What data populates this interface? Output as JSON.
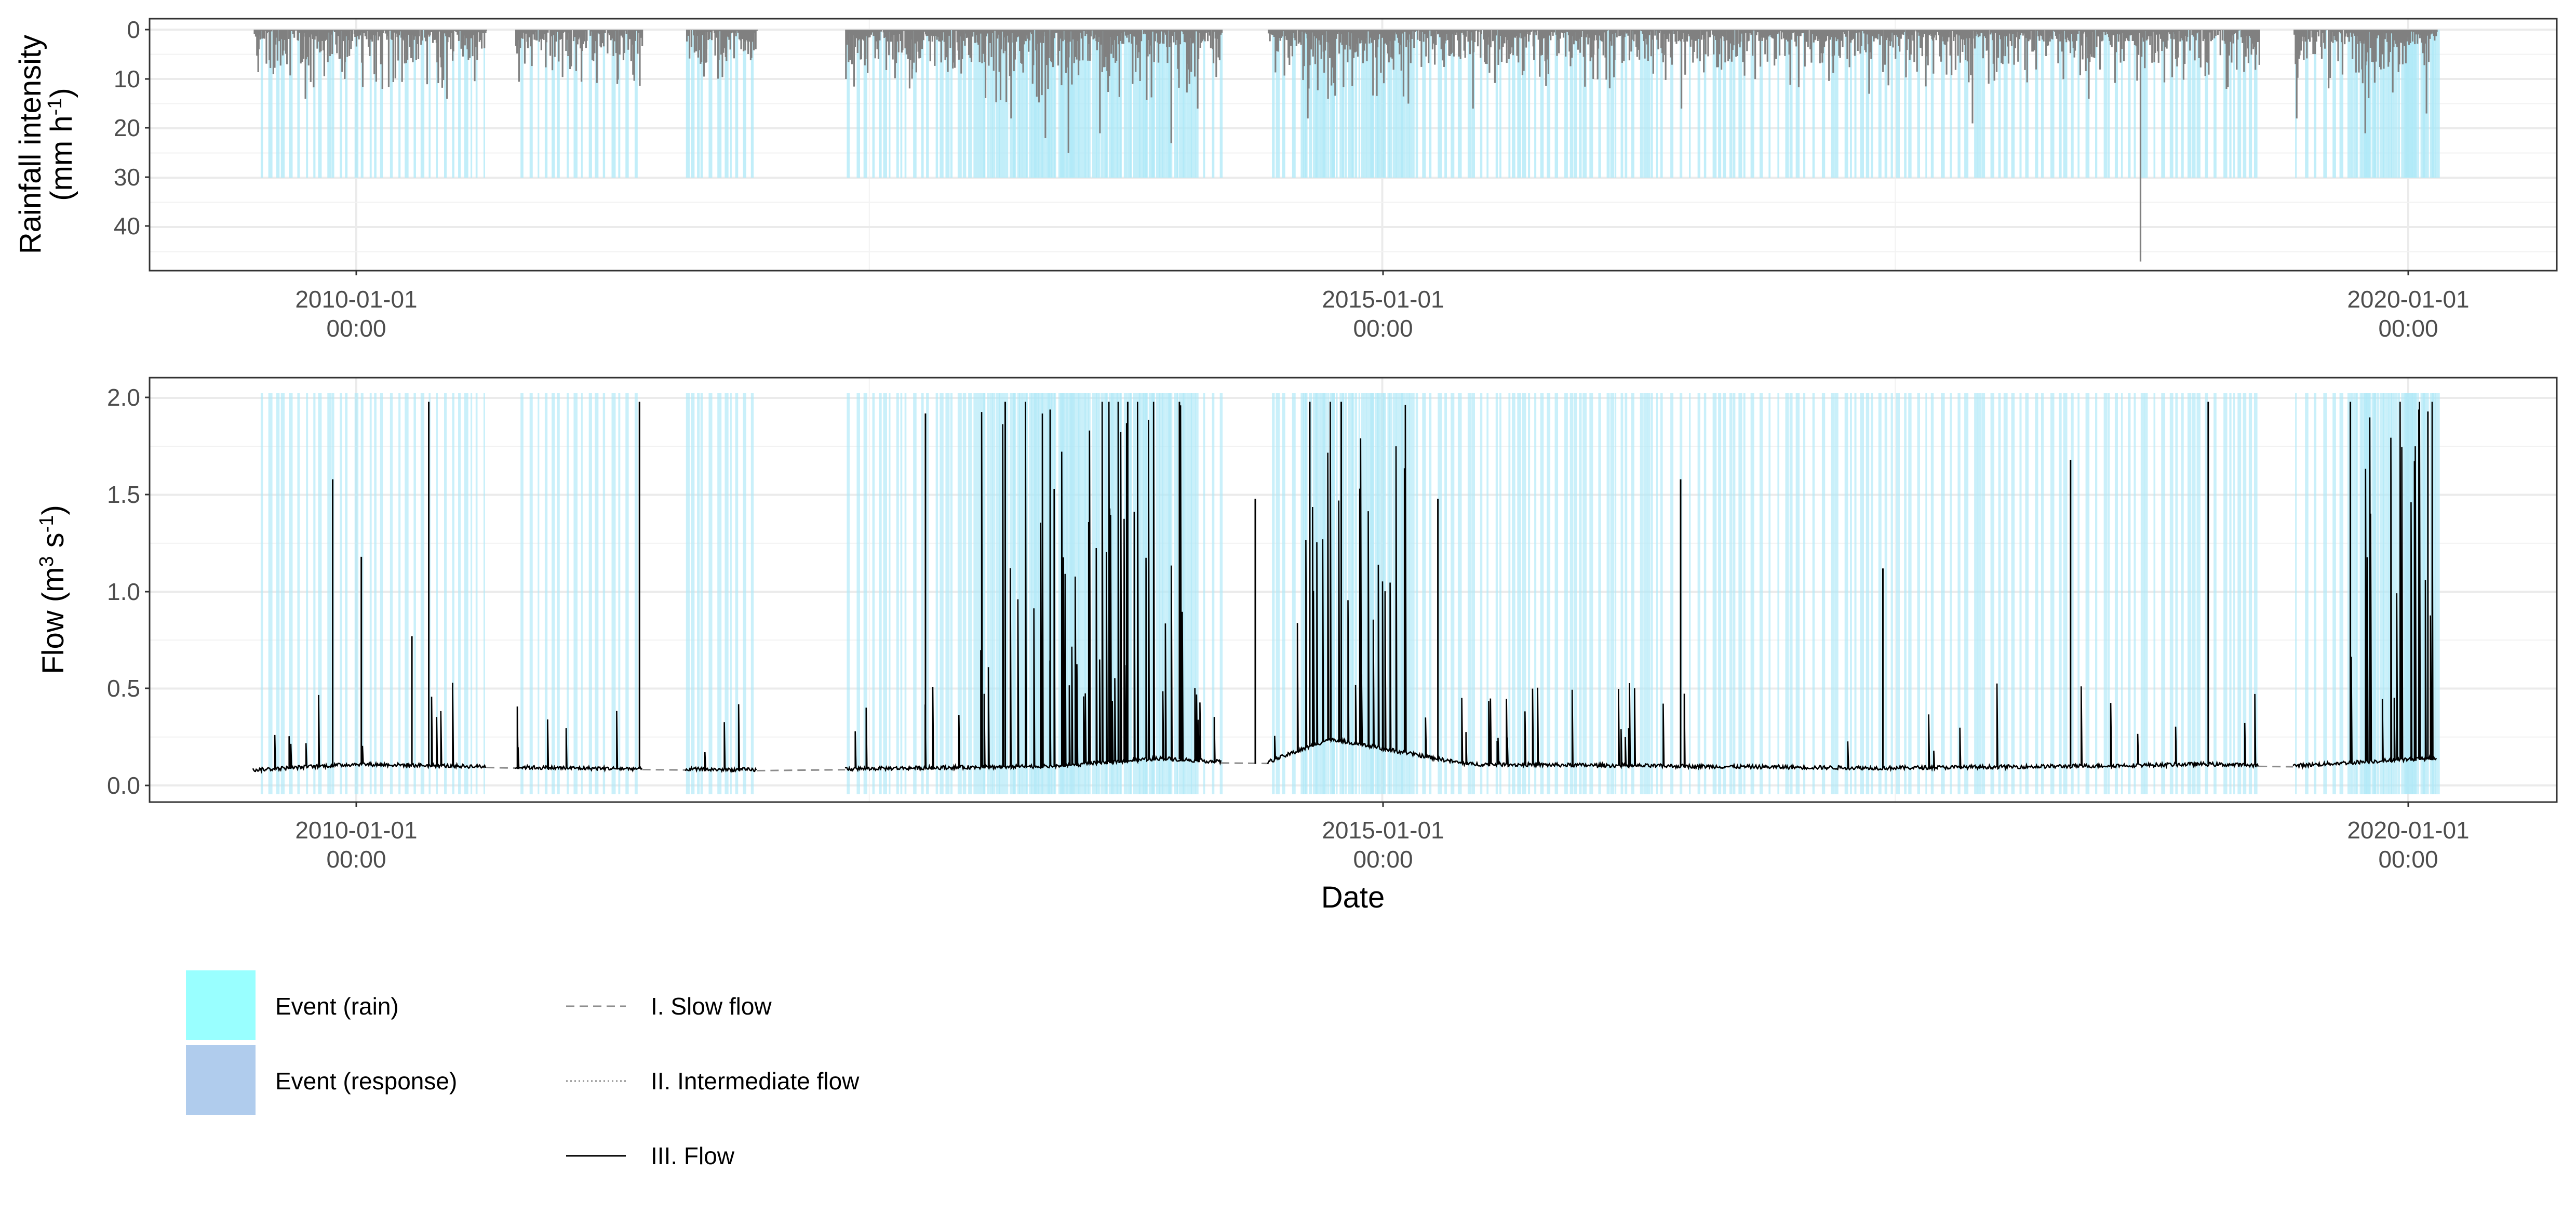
{
  "chart_data": [
    {
      "type": "bar",
      "panel": "top",
      "ylabel": "Rainfall intensity",
      "ylabel_line2": "(mm h",
      "ylabel_line2_sup": "-1",
      "ylabel_line2_end": ")",
      "y_reversed": true,
      "ylim": [
        0,
        49
      ],
      "yticks": [
        0,
        10,
        20,
        30,
        40
      ],
      "ytick_labels": [
        "0",
        "10",
        "20",
        "30",
        "40"
      ],
      "xlim": [
        "2009-01-01",
        "2021-10-01"
      ],
      "xticks": [
        "2010-01-01",
        "2015-01-01",
        "2020-01-01"
      ],
      "xtick_labels_line1": [
        "2010-01-01",
        "2015-01-01",
        "2020-01-01"
      ],
      "xtick_labels_line2": [
        "00:00",
        "00:00",
        "00:00"
      ],
      "grid": true,
      "event_band_depth": 30,
      "rain_series_approx": [
        {
          "date": "2009-07-10",
          "value": 4
        },
        {
          "date": "2009-08-05",
          "value": 9
        },
        {
          "date": "2009-10-01",
          "value": 14
        },
        {
          "date": "2009-12-10",
          "value": 10
        },
        {
          "date": "2010-02-15",
          "value": 12
        },
        {
          "date": "2010-04-20",
          "value": 6
        },
        {
          "date": "2010-06-10",
          "value": 14
        },
        {
          "date": "2011-01-15",
          "value": 8
        },
        {
          "date": "2011-09-15",
          "value": 4
        },
        {
          "date": "2012-05-20",
          "value": 10
        },
        {
          "date": "2012-09-15",
          "value": 8
        },
        {
          "date": "2013-03-10",
          "value": 18
        },
        {
          "date": "2013-05-10",
          "value": 22
        },
        {
          "date": "2013-06-20",
          "value": 25
        },
        {
          "date": "2013-08-15",
          "value": 21
        },
        {
          "date": "2013-12-20",
          "value": 23
        },
        {
          "date": "2014-02-05",
          "value": 16
        },
        {
          "date": "2014-08-20",
          "value": 18
        },
        {
          "date": "2014-09-25",
          "value": 14
        },
        {
          "date": "2015-02-15",
          "value": 15
        },
        {
          "date": "2015-06-10",
          "value": 16
        },
        {
          "date": "2016-01-10",
          "value": 10
        },
        {
          "date": "2016-06-15",
          "value": 16
        },
        {
          "date": "2017-05-15",
          "value": 13
        },
        {
          "date": "2017-11-15",
          "value": 19
        },
        {
          "date": "2018-06-10",
          "value": 14
        },
        {
          "date": "2018-09-10",
          "value": 47
        },
        {
          "date": "2019-02-10",
          "value": 12
        },
        {
          "date": "2019-06-15",
          "value": 18
        },
        {
          "date": "2019-10-15",
          "value": 21
        },
        {
          "date": "2020-02-01",
          "value": 17
        }
      ]
    },
    {
      "type": "line",
      "panel": "bottom",
      "ylabel": "Flow (m",
      "ylabel_sup1": "3",
      "ylabel_mid": " s",
      "ylabel_sup2": "-1",
      "ylabel_end": ")",
      "xlabel": "Date",
      "ylim": [
        -0.08,
        2.02
      ],
      "yticks": [
        0.0,
        0.5,
        1.0,
        1.5,
        2.0
      ],
      "ytick_labels": [
        "0.0",
        "0.5",
        "1.0",
        "1.5",
        "2.0"
      ],
      "xlim": [
        "2009-01-01",
        "2021-10-01"
      ],
      "xticks": [
        "2010-01-01",
        "2015-01-01",
        "2020-01-01"
      ],
      "xtick_labels_line1": [
        "2010-01-01",
        "2015-01-01",
        "2020-01-01"
      ],
      "xtick_labels_line2": [
        "00:00",
        "00:00",
        "00:00"
      ],
      "grid": true,
      "baseflow_approx": [
        {
          "date": "2009-07-01",
          "value": 0.08
        },
        {
          "date": "2010-01-01",
          "value": 0.11
        },
        {
          "date": "2011-01-01",
          "value": 0.09
        },
        {
          "date": "2012-01-01",
          "value": 0.08
        },
        {
          "date": "2013-06-01",
          "value": 0.1
        },
        {
          "date": "2013-12-01",
          "value": 0.14
        },
        {
          "date": "2014-06-01",
          "value": 0.11
        },
        {
          "date": "2014-10-01",
          "value": 0.24
        },
        {
          "date": "2015-06-01",
          "value": 0.11
        },
        {
          "date": "2016-06-01",
          "value": 0.1
        },
        {
          "date": "2017-06-01",
          "value": 0.09
        },
        {
          "date": "2018-06-01",
          "value": 0.1
        },
        {
          "date": "2019-01-01",
          "value": 0.11
        },
        {
          "date": "2019-06-01",
          "value": 0.1
        },
        {
          "date": "2020-02-01",
          "value": 0.14
        }
      ],
      "flow_peaks_approx": [
        {
          "date": "2009-11-20",
          "value": 1.58
        },
        {
          "date": "2010-01-10",
          "value": 1.18
        },
        {
          "date": "2010-04-10",
          "value": 0.77
        },
        {
          "date": "2010-05-10",
          "value": 1.98
        },
        {
          "date": "2011-05-20",
          "value": 1.98
        },
        {
          "date": "2012-10-10",
          "value": 1.92
        },
        {
          "date": "2013-03-01",
          "value": 1.98
        },
        {
          "date": "2013-05-20",
          "value": 1.94
        },
        {
          "date": "2013-10-05",
          "value": 1.98
        },
        {
          "date": "2014-01-05",
          "value": 1.98
        },
        {
          "date": "2014-05-20",
          "value": 1.48
        },
        {
          "date": "2014-08-25",
          "value": 1.98
        },
        {
          "date": "2014-10-20",
          "value": 1.98
        },
        {
          "date": "2015-04-10",
          "value": 1.48
        },
        {
          "date": "2016-06-15",
          "value": 1.58
        },
        {
          "date": "2017-06-10",
          "value": 1.12
        },
        {
          "date": "2018-05-10",
          "value": 1.68
        },
        {
          "date": "2019-01-10",
          "value": 1.98
        },
        {
          "date": "2019-09-20",
          "value": 1.98
        },
        {
          "date": "2020-01-20",
          "value": 1.94
        },
        {
          "date": "2020-02-05",
          "value": 1.93
        }
      ]
    }
  ],
  "legend": {
    "fill_items": [
      {
        "label": "Event (rain)",
        "color": "#99ffff"
      },
      {
        "label": "Event (response)",
        "color": "#b0cced"
      }
    ],
    "line_items": [
      {
        "label": "I. Slow flow",
        "style": "dashed",
        "color": "#8c8c8c"
      },
      {
        "label": "II. Intermediate flow",
        "style": "dotted",
        "color": "#8c8c8c"
      },
      {
        "label": "III. Flow",
        "style": "solid",
        "color": "#000000"
      }
    ]
  },
  "colors": {
    "rain_bars": "#808080",
    "event_band": "#aee8f7",
    "flow_line": "#000000",
    "slow_flow": "#8c8c8c"
  }
}
